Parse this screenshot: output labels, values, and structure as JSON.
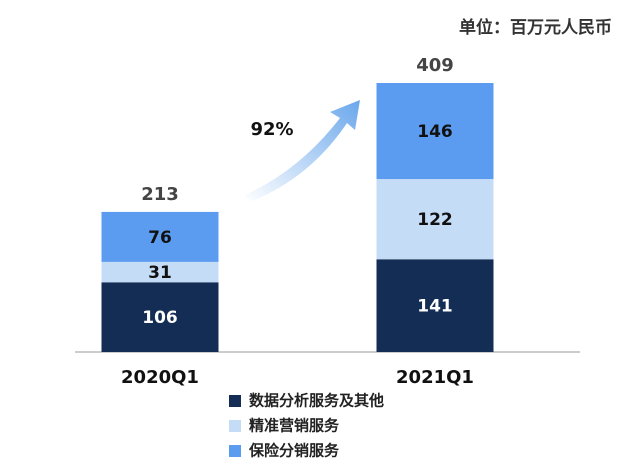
{
  "chart_data": {
    "type": "stacked-bar",
    "unit": "单位：百万元人民币",
    "categories": [
      "2020Q1",
      "2021Q1"
    ],
    "series": [
      {
        "name": "数据分析服务及其他",
        "color": "#132d54",
        "values": [
          106,
          141
        ]
      },
      {
        "name": "精准营销服务",
        "color": "#c5dcf7",
        "values": [
          31,
          122
        ]
      },
      {
        "name": "保险分销服务",
        "color": "#5b9cf0",
        "values": [
          76,
          146
        ]
      }
    ],
    "totals": [
      213,
      409
    ],
    "annotation": "92%"
  }
}
